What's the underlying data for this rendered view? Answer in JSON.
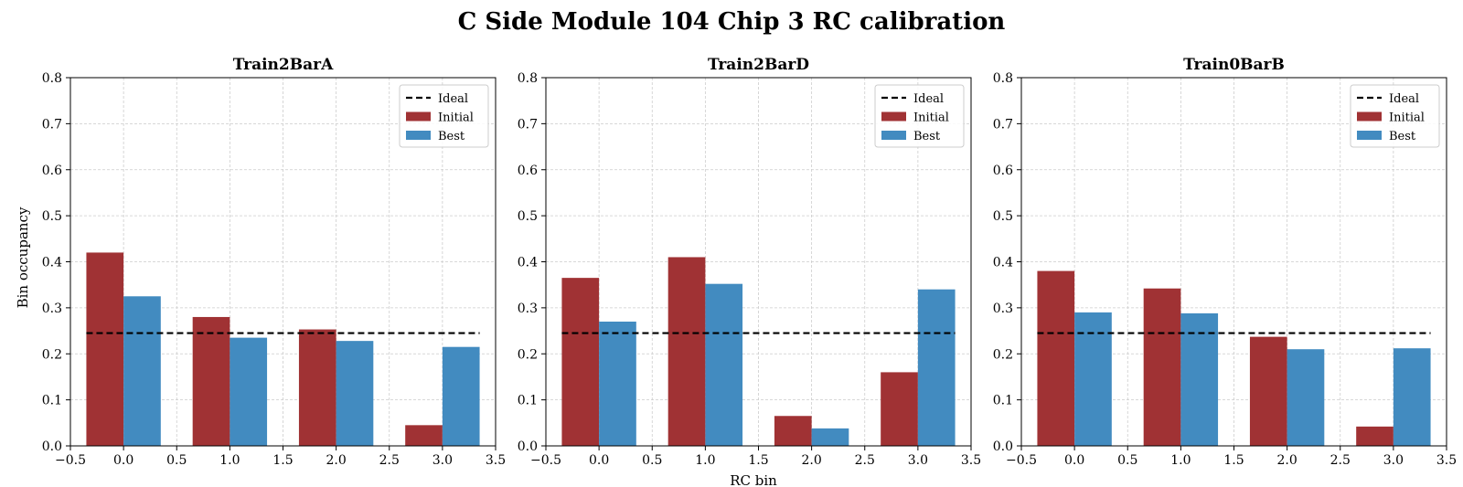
{
  "figure": {
    "suptitle": "C Side Module 104 Chip 3 RC calibration",
    "xlabel": "RC bin",
    "ylabel": "Bin occupancy"
  },
  "colors": {
    "initial": "#a03234",
    "best": "#428bc0",
    "ideal": "#000000",
    "grid": "#cccccc"
  },
  "chart_data": [
    {
      "type": "bar",
      "title": "Train2BarA",
      "x": [
        0,
        1,
        2,
        3
      ],
      "xlim": [
        -0.5,
        3.5
      ],
      "ylim": [
        0,
        0.8
      ],
      "xticks": [
        "−0.5",
        "0.0",
        "0.5",
        "1.0",
        "1.5",
        "2.0",
        "2.5",
        "3.0",
        "3.5"
      ],
      "yticks": [
        "0.0",
        "0.1",
        "0.2",
        "0.3",
        "0.4",
        "0.5",
        "0.6",
        "0.7",
        "0.8"
      ],
      "grid": true,
      "legend": "top-right",
      "ideal": 0.245,
      "series": [
        {
          "name": "Initial",
          "values": [
            0.42,
            0.28,
            0.253,
            0.045
          ]
        },
        {
          "name": "Best",
          "values": [
            0.325,
            0.235,
            0.228,
            0.215
          ]
        }
      ],
      "legend_labels": [
        "Ideal",
        "Initial",
        "Best"
      ]
    },
    {
      "type": "bar",
      "title": "Train2BarD",
      "x": [
        0,
        1,
        2,
        3
      ],
      "xlim": [
        -0.5,
        3.5
      ],
      "ylim": [
        0,
        0.8
      ],
      "xticks": [
        "−0.5",
        "0.0",
        "0.5",
        "1.0",
        "1.5",
        "2.0",
        "2.5",
        "3.0",
        "3.5"
      ],
      "yticks": [
        "0.0",
        "0.1",
        "0.2",
        "0.3",
        "0.4",
        "0.5",
        "0.6",
        "0.7",
        "0.8"
      ],
      "grid": true,
      "legend": "top-right",
      "ideal": 0.245,
      "series": [
        {
          "name": "Initial",
          "values": [
            0.365,
            0.41,
            0.065,
            0.16
          ]
        },
        {
          "name": "Best",
          "values": [
            0.27,
            0.352,
            0.038,
            0.34
          ]
        }
      ],
      "legend_labels": [
        "Ideal",
        "Initial",
        "Best"
      ]
    },
    {
      "type": "bar",
      "title": "Train0BarB",
      "x": [
        0,
        1,
        2,
        3
      ],
      "xlim": [
        -0.5,
        3.5
      ],
      "ylim": [
        0,
        0.8
      ],
      "xticks": [
        "−0.5",
        "0.0",
        "0.5",
        "1.0",
        "1.5",
        "2.0",
        "2.5",
        "3.0",
        "3.5"
      ],
      "yticks": [
        "0.0",
        "0.1",
        "0.2",
        "0.3",
        "0.4",
        "0.5",
        "0.6",
        "0.7",
        "0.8"
      ],
      "grid": true,
      "legend": "top-right",
      "ideal": 0.245,
      "series": [
        {
          "name": "Initial",
          "values": [
            0.38,
            0.342,
            0.237,
            0.042
          ]
        },
        {
          "name": "Best",
          "values": [
            0.29,
            0.288,
            0.21,
            0.212
          ]
        }
      ],
      "legend_labels": [
        "Ideal",
        "Initial",
        "Best"
      ]
    }
  ]
}
